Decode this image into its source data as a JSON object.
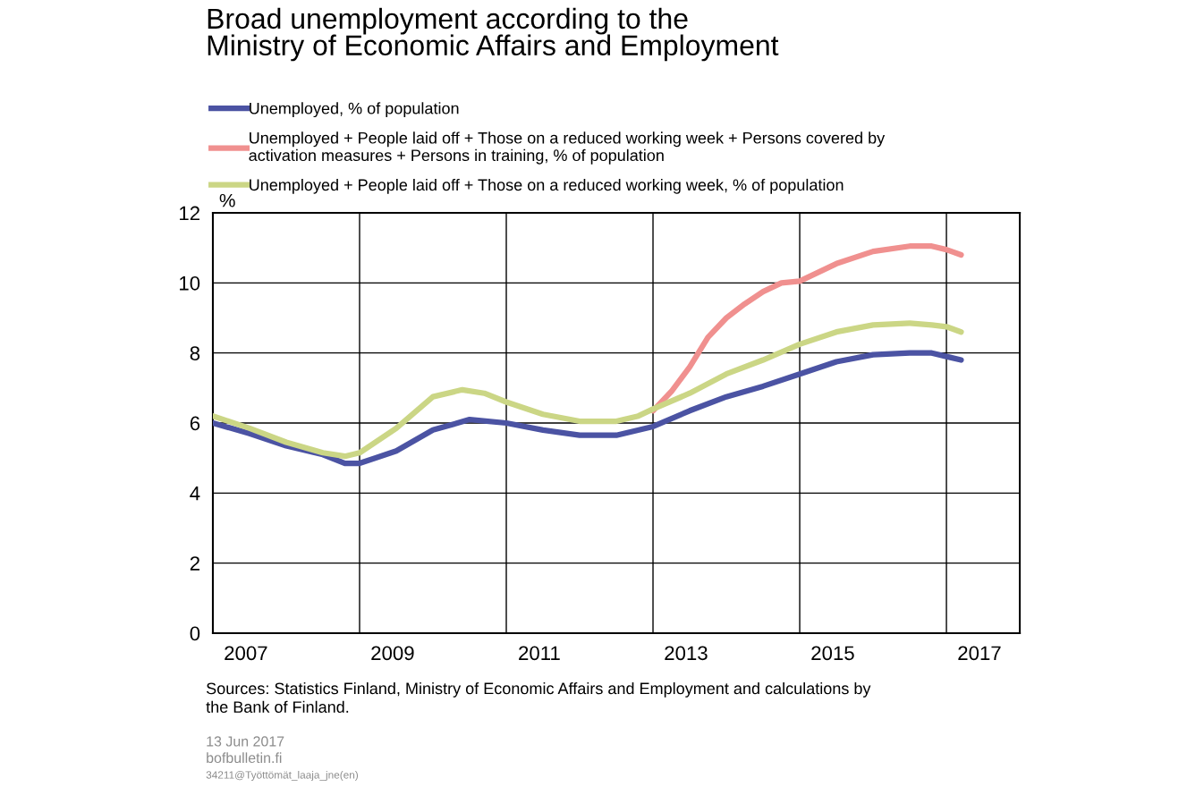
{
  "chart_data": {
    "type": "line",
    "title": "Broad unemployment according to the\nMinistry of Economic Affairs and Employment",
    "ylabel": "%",
    "annotations": [
      "Sources: Statistics Finland, Ministry of Economic Affairs and Employment and calculations by\nthe Bank of Finland.",
      "13 Jun 2017",
      "bofbulletin.fi",
      "34211@Työttömät_laaja_jne(en)"
    ],
    "xlim": [
      2007,
      2018
    ],
    "xticks": [
      {
        "value": 2007.45,
        "label": "2007"
      },
      {
        "value": 2009,
        "label": null
      },
      {
        "value": 2009.45,
        "label": "2009"
      },
      {
        "value": 2011,
        "label": null
      },
      {
        "value": 2011.45,
        "label": "2011"
      },
      {
        "value": 2013,
        "label": null
      },
      {
        "value": 2013.45,
        "label": "2013"
      },
      {
        "value": 2015,
        "label": null
      },
      {
        "value": 2015.45,
        "label": "2015"
      },
      {
        "value": 2017,
        "label": null
      },
      {
        "value": 2017.45,
        "label": "2017"
      }
    ],
    "ylim": [
      0,
      12
    ],
    "yticks": [
      0,
      2,
      4,
      6,
      8,
      10,
      12
    ],
    "grid": true,
    "legend": "top",
    "marker": "none",
    "line_style": "solid",
    "series": [
      {
        "name": "Unemployed, % of population",
        "color": "#4b53a3",
        "x": [
          2007.0,
          2007.5,
          2008.0,
          2008.5,
          2008.8,
          2009.0,
          2009.5,
          2010.0,
          2010.5,
          2011.0,
          2011.5,
          2012.0,
          2012.5,
          2013.0,
          2013.5,
          2014.0,
          2014.5,
          2015.0,
          2015.5,
          2016.0,
          2016.5,
          2016.8,
          2017.0,
          2017.2
        ],
        "values": [
          6.0,
          5.7,
          5.35,
          5.1,
          4.85,
          4.85,
          5.2,
          5.8,
          6.1,
          6.0,
          5.8,
          5.65,
          5.65,
          5.9,
          6.35,
          6.75,
          7.05,
          7.4,
          7.75,
          7.95,
          8.0,
          8.0,
          7.9,
          7.8
        ]
      },
      {
        "name": "Unemployed + People laid off + Those on a reduced working week + Persons covered by\nactivation measures + Persons in training, % of population",
        "color": "#f0908f",
        "x": [
          2013.0,
          2013.25,
          2013.5,
          2013.75,
          2014.0,
          2014.25,
          2014.5,
          2014.75,
          2015.0,
          2015.5,
          2016.0,
          2016.5,
          2016.8,
          2017.0,
          2017.2
        ],
        "values": [
          6.35,
          6.9,
          7.6,
          8.45,
          9.0,
          9.4,
          9.75,
          10.0,
          10.05,
          10.55,
          10.9,
          11.05,
          11.05,
          10.95,
          10.8
        ]
      },
      {
        "name": "Unemployed + People laid off + Those on a reduced working week, % of population",
        "color": "#cbd685",
        "x": [
          2007.0,
          2007.5,
          2008.0,
          2008.5,
          2008.8,
          2009.0,
          2009.5,
          2010.0,
          2010.4,
          2010.7,
          2011.0,
          2011.5,
          2012.0,
          2012.5,
          2012.8,
          2013.0,
          2013.5,
          2014.0,
          2014.5,
          2015.0,
          2015.5,
          2016.0,
          2016.5,
          2016.8,
          2017.0,
          2017.2
        ],
        "values": [
          6.2,
          5.85,
          5.45,
          5.15,
          5.05,
          5.15,
          5.85,
          6.75,
          6.95,
          6.85,
          6.6,
          6.25,
          6.05,
          6.05,
          6.2,
          6.4,
          6.85,
          7.4,
          7.8,
          8.25,
          8.6,
          8.8,
          8.85,
          8.8,
          8.75,
          8.6
        ]
      }
    ]
  }
}
